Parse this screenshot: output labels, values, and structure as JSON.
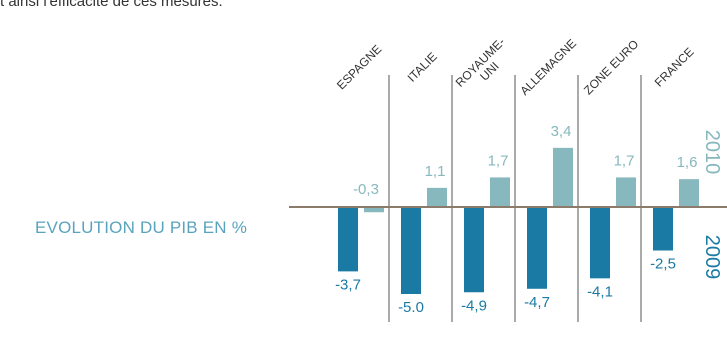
{
  "intro_text": "t ainsi l'efficacité de ces mesures.",
  "chart_data": {
    "type": "bar",
    "title": "EVOLUTION DU PIB EN %",
    "categories": [
      [
        "ESPAGNE"
      ],
      [
        "ITALIE"
      ],
      [
        "ROYAUME-",
        "UNI"
      ],
      [
        "ALLEMAGNE"
      ],
      [
        "ZONE EURO"
      ],
      [
        "FRANCE"
      ]
    ],
    "series": [
      {
        "name": "2009",
        "color": "#1b7aa3",
        "values": [
          -3.7,
          -5.0,
          -4.9,
          -4.7,
          -4.1,
          -2.5
        ],
        "labels": [
          "-3,7",
          "-5.0",
          "-4,9",
          "-4,7",
          "-4,1",
          "-2,5"
        ]
      },
      {
        "name": "2010",
        "color": "#87b8bd",
        "values": [
          -0.3,
          1.1,
          1.7,
          3.4,
          1.7,
          1.6
        ],
        "labels": [
          "-0,3",
          "1,1",
          "1,7",
          "3,4",
          "1,7",
          "1,6"
        ]
      }
    ],
    "axis_color": "#8c7b6b"
  }
}
